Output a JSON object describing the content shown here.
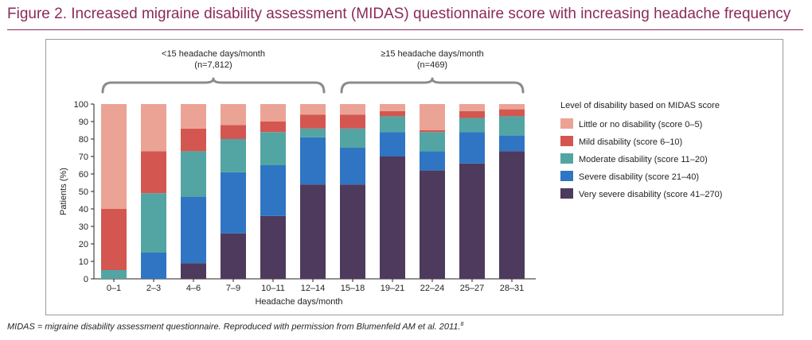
{
  "figure": {
    "title": "Figure 2. Increased migraine disability assessment (MIDAS) questionnaire score with increasing headache frequency",
    "footnote": "MIDAS = migraine disability assessment questionnaire. Reproduced with permission from Blumenfeld AM et al. 2011.",
    "footnote_ref": "8"
  },
  "chart_data": {
    "type": "bar",
    "stacked": true,
    "xlabel": "Headache days/month",
    "ylabel": "Patients (%)",
    "ylim": [
      0,
      100
    ],
    "yticks": [
      0,
      10,
      20,
      30,
      40,
      50,
      60,
      70,
      80,
      90,
      100
    ],
    "grid": false,
    "categories": [
      "0–1",
      "2–3",
      "4–6",
      "7–9",
      "10–11",
      "12–14",
      "15–18",
      "19–21",
      "22–24",
      "25–27",
      "28–31"
    ],
    "series": [
      {
        "name": "Very severe disability (score 41–270)",
        "color": "#4e3a5c",
        "values": [
          0,
          0,
          9,
          26,
          36,
          54,
          54,
          70,
          62,
          66,
          73
        ]
      },
      {
        "name": "Severe disability (score 21–40)",
        "color": "#2f75c4",
        "values": [
          0,
          15,
          38,
          35,
          29,
          27,
          21,
          14,
          11,
          18,
          9
        ]
      },
      {
        "name": "Moderate disability (score 11–20)",
        "color": "#52a5a3",
        "values": [
          5,
          34,
          26,
          19,
          19,
          5,
          11,
          9,
          11,
          8,
          11
        ]
      },
      {
        "name": "Mild disability (score 6–10)",
        "color": "#d35750",
        "values": [
          35,
          24,
          13,
          8,
          6,
          8,
          8,
          3,
          1,
          4,
          4
        ]
      },
      {
        "name": "Little or no disability (score 0–5)",
        "color": "#eba395",
        "values": [
          60,
          27,
          14,
          12,
          10,
          6,
          6,
          4,
          15,
          4,
          3
        ]
      }
    ],
    "legend": {
      "title": "Level of disability based on MIDAS score",
      "placement": "right",
      "order": [
        4,
        3,
        2,
        1,
        0
      ]
    },
    "groups": [
      {
        "label": "<15 headache days/month",
        "n": "(n=7,812)",
        "from": "0–1",
        "to": "12–14"
      },
      {
        "label": "≥15 headache days/month",
        "n": "(n=469)",
        "from": "15–18",
        "to": "28–31"
      }
    ]
  }
}
